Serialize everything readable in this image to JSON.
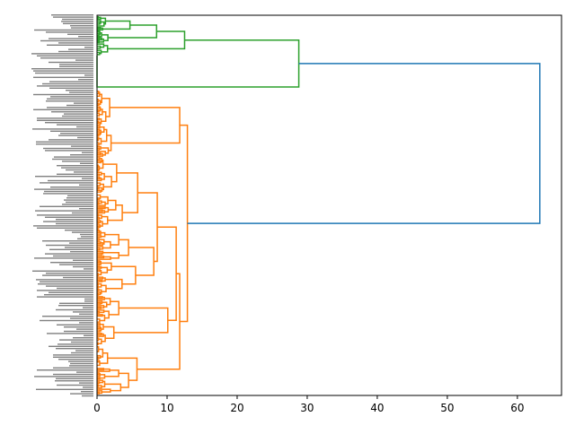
{
  "chart_data": {
    "type": "dendrogram",
    "orientation": "left",
    "title": "",
    "xlabel": "",
    "ylabel": "",
    "xlim": [
      0,
      66.3
    ],
    "x_ticks": [
      0,
      10,
      20,
      30,
      40,
      50,
      60
    ],
    "grid": false,
    "leaf_labels_legible": false,
    "colors": {
      "cluster_a": "#2ca02c",
      "cluster_b": "#ff7f0e",
      "root_link": "#1f77b4",
      "axis": "#000000",
      "leaf_label_text": "#555555"
    },
    "clusters": [
      {
        "color_key": "cluster_a",
        "leaf_count_estimate": 30,
        "merge_heights": [
          0.2,
          0.5,
          0.8,
          1.0,
          1.2,
          1.5,
          1.6,
          4.7,
          8.5,
          12.5,
          28.8
        ]
      },
      {
        "color_key": "cluster_b",
        "leaf_count_estimate": 220,
        "merge_heights": [
          0.3,
          0.6,
          0.9,
          1.2,
          1.5,
          1.8,
          2.0,
          2.4,
          2.8,
          3.1,
          3.6,
          4.5,
          5.5,
          8.1,
          10.1,
          11.3,
          11.8,
          12.9
        ]
      }
    ],
    "root_merge_height": 63.2
  }
}
